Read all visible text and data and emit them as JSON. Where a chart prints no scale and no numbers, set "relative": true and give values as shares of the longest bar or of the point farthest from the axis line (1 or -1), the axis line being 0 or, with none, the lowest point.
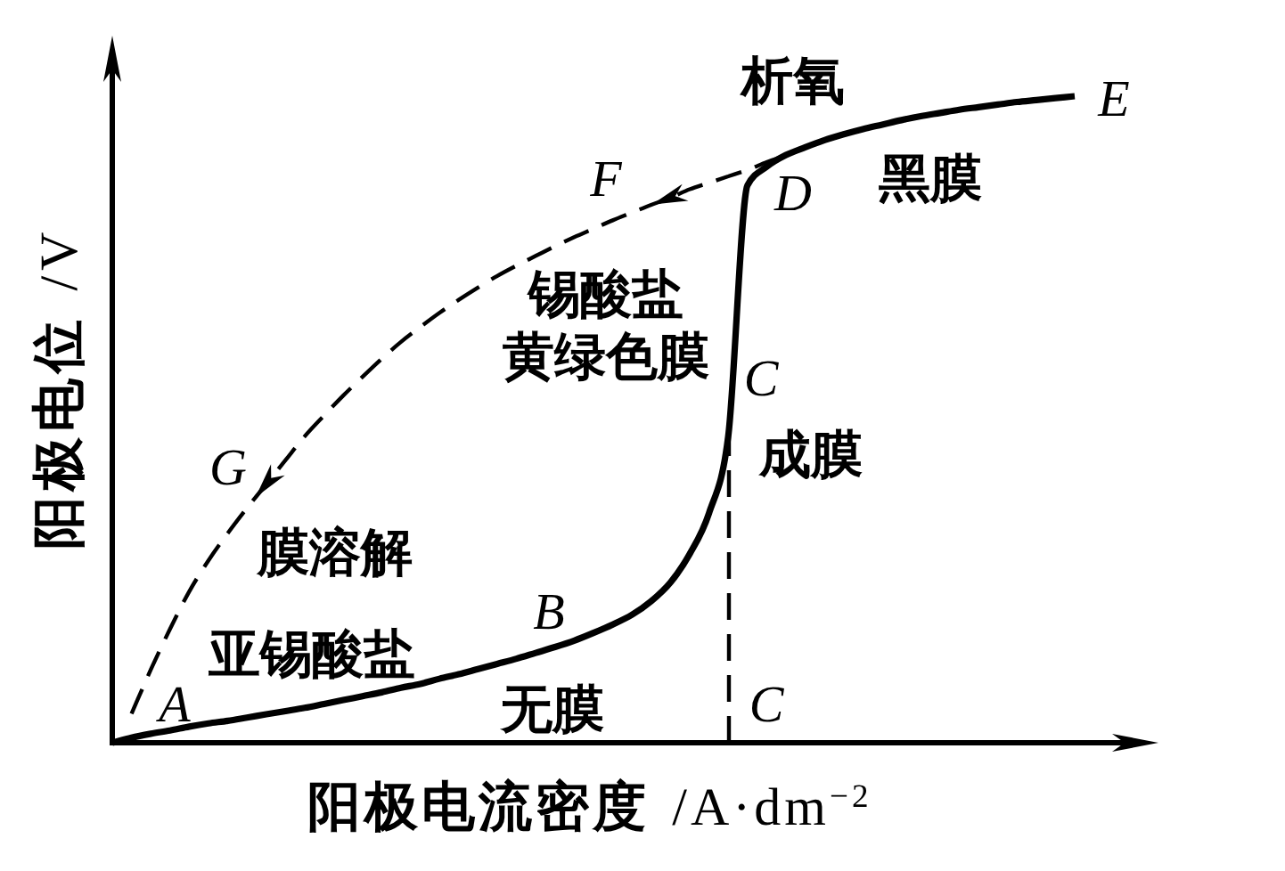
{
  "chart_data": {
    "type": "line",
    "relative": true,
    "xlabel": "阳极电流密度 /A·dm$^{−2}$",
    "ylabel": "阳极电位 /V",
    "categories": [
      null,
      null,
      null,
      null,
      null,
      null,
      null,
      null,
      null,
      null,
      null,
      null,
      null,
      null,
      null,
      null,
      null,
      null,
      null,
      null,
      null,
      null,
      null,
      null,
      null,
      null,
      null,
      null,
      null,
      null,
      null,
      null,
      null,
      null,
      null,
      null,
      null,
      null,
      null,
      null,
      null,
      null,
      null,
      null,
      null,
      null,
      null,
      null,
      null,
      null,
      null
    ],
    "series": [
      {
        "line_style": "solid",
        "color": "#000000",
        "values": [
          0,
          0.008,
          0.014,
          0.019,
          0.025,
          0.03,
          0.034,
          0.039,
          0.044,
          0.049,
          0.054,
          0.06,
          0.066,
          0.072,
          0.078,
          0.085,
          0.091,
          0.099,
          0.106,
          0.114,
          0.122,
          0.13,
          0.139,
          0.148,
          0.158,
          0.17,
          0.183,
          0.198,
          0.219,
          0.248,
          0.292,
          0.355,
          0.474,
          0.862,
          0.891,
          0.909,
          0.921,
          0.932,
          0.941,
          0.949,
          0.956,
          0.963,
          0.969,
          0.974,
          0.979,
          0.983,
          0.987,
          0.991,
          0.994,
          0.997,
          1
        ]
      },
      {
        "line_style": "dashed",
        "color": "#000000",
        "values": [
          null,
          0.045,
          0.113,
          0.176,
          0.234,
          0.282,
          0.324,
          0.363,
          0.4,
          0.437,
          0.474,
          0.506,
          0.537,
          0.566,
          0.594,
          0.62,
          0.643,
          0.665,
          0.685,
          0.704,
          0.722,
          0.738,
          0.753,
          0.768,
          0.782,
          0.795,
          0.808,
          0.82,
          0.832,
          0.843,
          0.856,
          0.866,
          0.876,
          0.886,
          0.898,
          0.909,
          null,
          null,
          null,
          null,
          null,
          null,
          null,
          null,
          null,
          null,
          null,
          null,
          null,
          null,
          null
        ]
      }
    ],
    "annotations": [
      "析氧",
      "E",
      "F",
      "D",
      "黑膜",
      "锡酸盐",
      "黄绿色膜",
      "C",
      "成膜",
      "G",
      "膜溶解",
      "B",
      "亚锡酸盐",
      "A",
      "无膜",
      "C"
    ]
  }
}
